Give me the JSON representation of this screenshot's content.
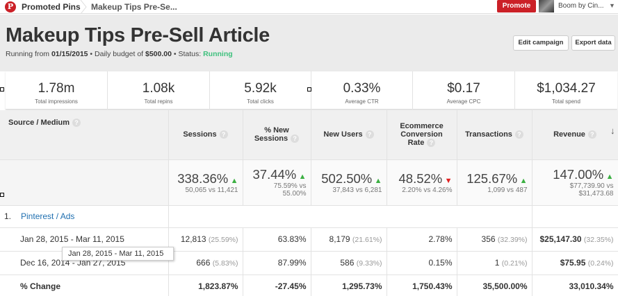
{
  "topbar": {
    "logo": "P",
    "breadcrumb_home": "Promoted Pins",
    "breadcrumb_current": "Makeup Tips Pre-Se...",
    "promote_label": "Promote",
    "user_name": "Boom by Cin...",
    "user_caret": "▼",
    "brand_color": "#cb2027"
  },
  "header": {
    "title": "Makeup Tips Pre-Sell Article",
    "meta_prefix": "Running from ",
    "start_date": "01/15/2015",
    "meta_mid": " • Daily budget of ",
    "budget": "$500.00",
    "meta_status": " • Status: ",
    "status": "Running",
    "edit_label": "Edit campaign",
    "export_label": "Export data"
  },
  "stats": [
    {
      "value": "1.78m",
      "label": "Total impressions"
    },
    {
      "value": "1.08k",
      "label": "Total repins"
    },
    {
      "value": "5.92k",
      "label": "Total clicks"
    },
    {
      "value": "0.33%",
      "label": "Average CTR"
    },
    {
      "value": "$0.17",
      "label": "Average CPC"
    },
    {
      "value": "$1,034.27",
      "label": "Total spend"
    }
  ],
  "table": {
    "source_header": "Source / Medium",
    "help": "?",
    "sort_icon": "↓",
    "columns": [
      {
        "label1": "Sessions",
        "label2": ""
      },
      {
        "label1": "% New",
        "label2": "Sessions"
      },
      {
        "label1": "New Users",
        "label2": ""
      },
      {
        "label1": "Ecommerce",
        "label2": "Conversion",
        "label3": "Rate"
      },
      {
        "label1": "Transactions",
        "label2": ""
      },
      {
        "label1": "Revenue",
        "label2": ""
      }
    ],
    "summary": [
      {
        "pct": "338.36%",
        "dir": "▲",
        "cmp1": "50,065 vs 11,421",
        "cmp2": ""
      },
      {
        "pct": "37.44%",
        "dir": "▲",
        "cmp1": "75.59% vs",
        "cmp2": "55.00%"
      },
      {
        "pct": "502.50%",
        "dir": "▲",
        "cmp1": "37,843 vs 6,281",
        "cmp2": ""
      },
      {
        "pct": "48.52%",
        "dir": "▼",
        "cmp1": "2.20% vs 4.26%",
        "cmp2": ""
      },
      {
        "pct": "125.67%",
        "dir": "▲",
        "cmp1": "1,099 vs 487",
        "cmp2": ""
      },
      {
        "pct": "147.00%",
        "dir": "▲",
        "cmp1": "$77,739.90 vs",
        "cmp2": "$31,473.68"
      }
    ],
    "group": {
      "num": "1.",
      "link": "Pinterest / Ads"
    },
    "rows": [
      {
        "label": "Jan 28, 2015 - Mar 11, 2015",
        "cells": [
          {
            "v": "12,813",
            "s": "(25.59%)"
          },
          {
            "v": "63.83%",
            "s": ""
          },
          {
            "v": "8,179",
            "s": "(21.61%)"
          },
          {
            "v": "2.78%",
            "s": ""
          },
          {
            "v": "356",
            "s": "(32.39%)"
          },
          {
            "v": "$25,147.30",
            "s": "(32.35%)"
          }
        ]
      },
      {
        "label": "Dec 16, 2014 - Jan 27, 2015",
        "cells": [
          {
            "v": "666",
            "s": "(5.83%)"
          },
          {
            "v": "87.99%",
            "s": ""
          },
          {
            "v": "586",
            "s": "(9.33%)"
          },
          {
            "v": "0.15%",
            "s": ""
          },
          {
            "v": "1",
            "s": "(0.21%)"
          },
          {
            "v": "$75.95",
            "s": "(0.24%)"
          }
        ]
      }
    ],
    "total": {
      "label": "% Change",
      "cells": [
        "1,823.87%",
        "-27.45%",
        "1,295.73%",
        "1,750.43%",
        "35,500.00%",
        "33,010.34%"
      ]
    }
  },
  "tooltip": "Jan 28, 2015 - Mar 11, 2015",
  "colors": {
    "up": "#3cb043",
    "down": "#e02020",
    "link": "#1f6fb0",
    "running": "#3ec07d"
  }
}
